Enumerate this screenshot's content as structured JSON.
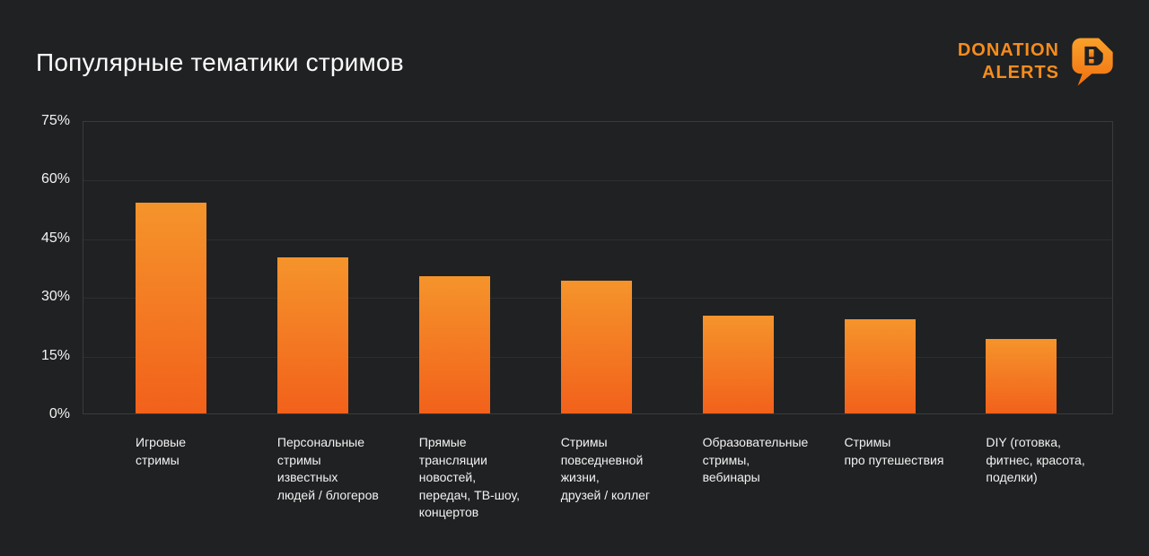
{
  "page": {
    "background_color": "#202122",
    "accent_color": "#F5831F"
  },
  "header": {
    "title": "Популярные тематики стримов",
    "logo": {
      "line1": "DONATION",
      "line2": "ALERTS",
      "icon": "speech-bubble-with-d-exclamation",
      "color": "#F78C1D"
    }
  },
  "chart_data": {
    "type": "bar",
    "title": "Популярные тематики стримов",
    "categories": [
      "Игровые\nстримы",
      "Персональные\nстримы\nизвестных\nлюдей / блогеров",
      "Прямые\nтрансляции\nновостей,\nпередач, ТВ-шоу,\nконцертов",
      "Стримы\nповседневной\nжизни,\nдрузей / коллег",
      "Образовательные\nстримы,\nвебинары",
      "Стримы\nпро путешествия",
      "DIY (готовка,\nфитнес, красота,\nподелки)"
    ],
    "values": [
      54,
      40,
      35,
      34,
      25,
      24,
      19
    ],
    "unit": "%",
    "xlabel": "",
    "ylabel": "",
    "ylim": [
      0,
      75
    ],
    "ytick_step": 15,
    "yticks": [
      "75%",
      "60%",
      "45%",
      "30%",
      "15%",
      "0%"
    ],
    "grid": true,
    "legend": false,
    "bar_color_top": "#F5942B",
    "bar_color_bottom": "#F2611B",
    "gridline_color": "#2D2E2F",
    "plot_border_color": "#3A3B3C"
  }
}
